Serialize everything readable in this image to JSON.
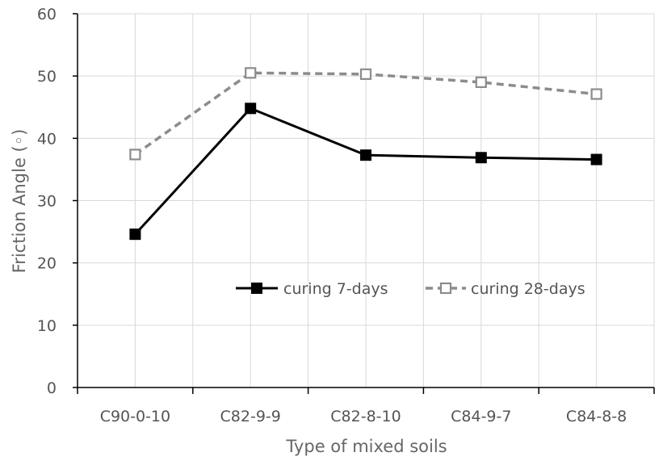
{
  "chart_data": {
    "type": "line",
    "title": "",
    "xlabel": "Type of mixed soils",
    "ylabel": "Friction Angle (◦)",
    "categories": [
      "C90-0-10",
      "C82-9-9",
      "C82-8-10",
      "C84-9-7",
      "C84-8-8"
    ],
    "ylim": [
      0,
      60
    ],
    "yticks": [
      "0",
      "10",
      "20",
      "30",
      "40",
      "50",
      "60"
    ],
    "grid": true,
    "legend_position": "inside-center",
    "series": [
      {
        "name": "curing 7-days",
        "values": [
          24.6,
          44.8,
          37.3,
          36.9,
          36.6
        ],
        "color": "#000000",
        "style": "solid",
        "marker": "filled-square"
      },
      {
        "name": "curing 28-days",
        "values": [
          37.4,
          50.5,
          50.3,
          49.0,
          47.1
        ],
        "color": "#8c8c8c",
        "style": "dashed",
        "marker": "hollow-square"
      }
    ]
  }
}
